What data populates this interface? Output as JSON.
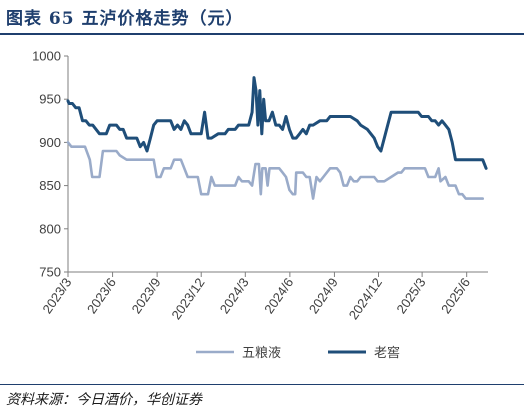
{
  "header": {
    "title": "图表 65   五泸价格走势（元）"
  },
  "footer": {
    "source": "资料来源：今日酒价，华创证券"
  },
  "chart_data": {
    "type": "line",
    "title": "图表 65   五泸价格走势（元）",
    "ylim": [
      750,
      1000
    ],
    "yticks": [
      "750",
      "800",
      "850",
      "900",
      "950",
      "1000"
    ],
    "xlim": [
      "2023-03-01",
      "2025-07-15"
    ],
    "xticks": [
      {
        "label": "2023/3",
        "date": "2023-03-01"
      },
      {
        "label": "2023/6",
        "date": "2023-06-01"
      },
      {
        "label": "2023/9",
        "date": "2023-09-01"
      },
      {
        "label": "2023/12",
        "date": "2023-12-01"
      },
      {
        "label": "2024/3",
        "date": "2024-03-01"
      },
      {
        "label": "2024/6",
        "date": "2024-06-01"
      },
      {
        "label": "2024/9",
        "date": "2024-09-01"
      },
      {
        "label": "2024/12",
        "date": "2024-12-01"
      },
      {
        "label": "2025/3",
        "date": "2025-03-01"
      },
      {
        "label": "2025/6",
        "date": "2025-06-01"
      }
    ],
    "legend": "bottom",
    "grid": false,
    "series": [
      {
        "name": "五粮液",
        "color": "#9aabc9",
        "points": [
          [
            "2023-03-01",
            900
          ],
          [
            "2023-03-08",
            895
          ],
          [
            "2023-03-22",
            895
          ],
          [
            "2023-04-05",
            895
          ],
          [
            "2023-04-15",
            880
          ],
          [
            "2023-04-20",
            860
          ],
          [
            "2023-05-05",
            860
          ],
          [
            "2023-05-12",
            890
          ],
          [
            "2023-05-26",
            890
          ],
          [
            "2023-06-09",
            890
          ],
          [
            "2023-06-16",
            885
          ],
          [
            "2023-06-30",
            880
          ],
          [
            "2023-07-14",
            880
          ],
          [
            "2023-07-28",
            880
          ],
          [
            "2023-08-11",
            880
          ],
          [
            "2023-08-25",
            880
          ],
          [
            "2023-08-31",
            860
          ],
          [
            "2023-09-08",
            860
          ],
          [
            "2023-09-15",
            870
          ],
          [
            "2023-09-29",
            870
          ],
          [
            "2023-10-06",
            880
          ],
          [
            "2023-10-20",
            880
          ],
          [
            "2023-10-27",
            870
          ],
          [
            "2023-11-03",
            860
          ],
          [
            "2023-11-10",
            860
          ],
          [
            "2023-11-24",
            860
          ],
          [
            "2023-12-01",
            840
          ],
          [
            "2023-12-15",
            840
          ],
          [
            "2023-12-22",
            860
          ],
          [
            "2023-12-29",
            850
          ],
          [
            "2024-01-12",
            850
          ],
          [
            "2024-01-26",
            850
          ],
          [
            "2024-02-09",
            850
          ],
          [
            "2024-02-16",
            860
          ],
          [
            "2024-02-23",
            855
          ],
          [
            "2024-03-08",
            855
          ],
          [
            "2024-03-15",
            850
          ],
          [
            "2024-03-22",
            875
          ],
          [
            "2024-03-29",
            875
          ],
          [
            "2024-04-02",
            840
          ],
          [
            "2024-04-05",
            870
          ],
          [
            "2024-04-12",
            870
          ],
          [
            "2024-04-16",
            850
          ],
          [
            "2024-04-20",
            870
          ],
          [
            "2024-04-26",
            870
          ],
          [
            "2024-05-10",
            870
          ],
          [
            "2024-05-17",
            865
          ],
          [
            "2024-05-24",
            860
          ],
          [
            "2024-05-31",
            845
          ],
          [
            "2024-06-07",
            840
          ],
          [
            "2024-06-12",
            840
          ],
          [
            "2024-06-14",
            865
          ],
          [
            "2024-06-28",
            865
          ],
          [
            "2024-07-05",
            860
          ],
          [
            "2024-07-12",
            860
          ],
          [
            "2024-07-19",
            835
          ],
          [
            "2024-07-26",
            860
          ],
          [
            "2024-08-02",
            855
          ],
          [
            "2024-08-09",
            860
          ],
          [
            "2024-08-23",
            870
          ],
          [
            "2024-09-06",
            870
          ],
          [
            "2024-09-13",
            865
          ],
          [
            "2024-09-20",
            850
          ],
          [
            "2024-09-27",
            850
          ],
          [
            "2024-10-04",
            860
          ],
          [
            "2024-10-11",
            855
          ],
          [
            "2024-10-18",
            855
          ],
          [
            "2024-10-25",
            860
          ],
          [
            "2024-11-08",
            860
          ],
          [
            "2024-11-22",
            860
          ],
          [
            "2024-11-29",
            855
          ],
          [
            "2024-12-13",
            855
          ],
          [
            "2024-12-27",
            860
          ],
          [
            "2025-01-10",
            865
          ],
          [
            "2025-01-17",
            865
          ],
          [
            "2025-01-24",
            870
          ],
          [
            "2025-02-07",
            870
          ],
          [
            "2025-02-21",
            870
          ],
          [
            "2025-03-07",
            870
          ],
          [
            "2025-03-14",
            860
          ],
          [
            "2025-03-21",
            860
          ],
          [
            "2025-03-28",
            860
          ],
          [
            "2025-04-04",
            870
          ],
          [
            "2025-04-08",
            855
          ],
          [
            "2025-04-18",
            860
          ],
          [
            "2025-04-25",
            850
          ],
          [
            "2025-05-09",
            850
          ],
          [
            "2025-05-16",
            840
          ],
          [
            "2025-05-23",
            840
          ],
          [
            "2025-05-30",
            835
          ],
          [
            "2025-06-06",
            835
          ],
          [
            "2025-06-13",
            835
          ],
          [
            "2025-06-20",
            835
          ],
          [
            "2025-06-27",
            835
          ],
          [
            "2025-07-04",
            835
          ]
        ]
      },
      {
        "name": "老窖",
        "color": "#1f4e79",
        "points": [
          [
            "2023-03-01",
            948
          ],
          [
            "2023-03-03",
            945
          ],
          [
            "2023-03-10",
            945
          ],
          [
            "2023-03-17",
            940
          ],
          [
            "2023-03-24",
            940
          ],
          [
            "2023-03-31",
            925
          ],
          [
            "2023-04-07",
            925
          ],
          [
            "2023-04-14",
            920
          ],
          [
            "2023-04-21",
            920
          ],
          [
            "2023-04-28",
            915
          ],
          [
            "2023-05-05",
            910
          ],
          [
            "2023-05-12",
            910
          ],
          [
            "2023-05-19",
            910
          ],
          [
            "2023-05-26",
            920
          ],
          [
            "2023-06-02",
            920
          ],
          [
            "2023-06-09",
            920
          ],
          [
            "2023-06-16",
            915
          ],
          [
            "2023-06-23",
            915
          ],
          [
            "2023-06-30",
            905
          ],
          [
            "2023-07-07",
            905
          ],
          [
            "2023-07-14",
            905
          ],
          [
            "2023-07-21",
            905
          ],
          [
            "2023-07-28",
            895
          ],
          [
            "2023-08-04",
            900
          ],
          [
            "2023-08-11",
            890
          ],
          [
            "2023-08-18",
            905
          ],
          [
            "2023-08-25",
            920
          ],
          [
            "2023-09-01",
            925
          ],
          [
            "2023-09-15",
            925
          ],
          [
            "2023-09-29",
            925
          ],
          [
            "2023-10-06",
            915
          ],
          [
            "2023-10-13",
            920
          ],
          [
            "2023-10-20",
            915
          ],
          [
            "2023-10-27",
            925
          ],
          [
            "2023-11-03",
            920
          ],
          [
            "2023-11-10",
            910
          ],
          [
            "2023-11-24",
            910
          ],
          [
            "2023-12-01",
            910
          ],
          [
            "2023-12-08",
            935
          ],
          [
            "2023-12-15",
            905
          ],
          [
            "2023-12-22",
            905
          ],
          [
            "2024-01-05",
            910
          ],
          [
            "2024-01-19",
            910
          ],
          [
            "2024-01-26",
            915
          ],
          [
            "2024-02-09",
            915
          ],
          [
            "2024-02-16",
            920
          ],
          [
            "2024-02-23",
            920
          ],
          [
            "2024-03-01",
            920
          ],
          [
            "2024-03-08",
            920
          ],
          [
            "2024-03-15",
            935
          ],
          [
            "2024-03-19",
            975
          ],
          [
            "2024-03-23",
            960
          ],
          [
            "2024-03-27",
            920
          ],
          [
            "2024-03-31",
            960
          ],
          [
            "2024-04-04",
            910
          ],
          [
            "2024-04-08",
            950
          ],
          [
            "2024-04-12",
            925
          ],
          [
            "2024-04-19",
            925
          ],
          [
            "2024-04-26",
            935
          ],
          [
            "2024-05-03",
            920
          ],
          [
            "2024-05-10",
            920
          ],
          [
            "2024-05-17",
            915
          ],
          [
            "2024-05-24",
            930
          ],
          [
            "2024-05-31",
            915
          ],
          [
            "2024-06-07",
            905
          ],
          [
            "2024-06-14",
            905
          ],
          [
            "2024-06-21",
            910
          ],
          [
            "2024-06-28",
            915
          ],
          [
            "2024-07-05",
            910
          ],
          [
            "2024-07-12",
            920
          ],
          [
            "2024-07-19",
            920
          ],
          [
            "2024-08-02",
            925
          ],
          [
            "2024-08-16",
            925
          ],
          [
            "2024-08-23",
            930
          ],
          [
            "2024-09-06",
            930
          ],
          [
            "2024-09-20",
            930
          ],
          [
            "2024-10-04",
            930
          ],
          [
            "2024-10-18",
            925
          ],
          [
            "2024-10-25",
            920
          ],
          [
            "2024-11-08",
            915
          ],
          [
            "2024-11-22",
            905
          ],
          [
            "2024-11-29",
            895
          ],
          [
            "2024-12-06",
            890
          ],
          [
            "2024-12-13",
            905
          ],
          [
            "2024-12-20",
            920
          ],
          [
            "2024-12-27",
            935
          ],
          [
            "2025-01-10",
            935
          ],
          [
            "2025-01-24",
            935
          ],
          [
            "2025-02-07",
            935
          ],
          [
            "2025-02-21",
            935
          ],
          [
            "2025-02-28",
            930
          ],
          [
            "2025-03-07",
            930
          ],
          [
            "2025-03-14",
            930
          ],
          [
            "2025-03-21",
            925
          ],
          [
            "2025-03-28",
            925
          ],
          [
            "2025-04-04",
            920
          ],
          [
            "2025-04-11",
            925
          ],
          [
            "2025-04-18",
            920
          ],
          [
            "2025-04-25",
            915
          ],
          [
            "2025-05-02",
            900
          ],
          [
            "2025-05-09",
            880
          ],
          [
            "2025-05-16",
            880
          ],
          [
            "2025-05-30",
            880
          ],
          [
            "2025-06-13",
            880
          ],
          [
            "2025-06-27",
            880
          ],
          [
            "2025-07-04",
            880
          ],
          [
            "2025-07-11",
            870
          ]
        ]
      }
    ]
  }
}
